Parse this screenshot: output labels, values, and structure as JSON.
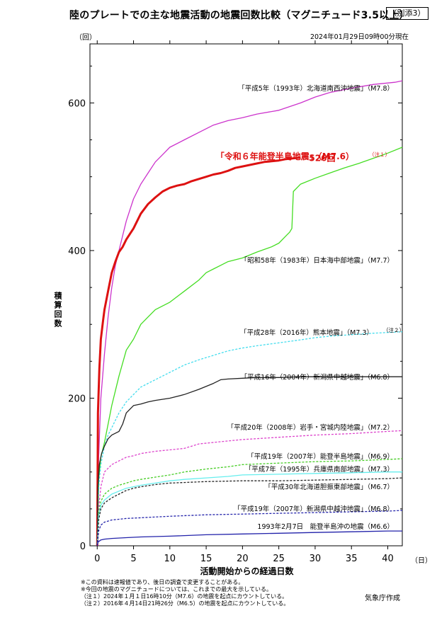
{
  "annex_label": "（別添3）",
  "title": "陸のプレートでの主な地震活動の地震回数比較（マグニチュード3.5以上）",
  "timestamp": "2024年01月29日09時00分現在",
  "y_unit": "（回）",
  "x_unit": "（日）",
  "credit": "気象庁作成",
  "footnotes": [
    "※この資料は速報値であり、後日の調査で変更することがある。",
    "※今回の地震のマグニチュードについては、これまでの最大を示している。",
    "（注１）2024年１月１日16時10分（M7.6）の地震を起点にカウントしている。",
    "（注２）2016年４月14日21時26分（M6.5）の地震を起点にカウントしている。"
  ],
  "chart_data": {
    "type": "line",
    "xlabel": "活動開始からの経過日数",
    "ylabel": "積算回数",
    "xlim": [
      -1,
      42
    ],
    "ylim": [
      0,
      680
    ],
    "xticks": [
      0,
      5,
      10,
      15,
      20,
      25,
      30,
      35,
      40
    ],
    "yticks": [
      0,
      200,
      400,
      600
    ],
    "end_annotation": "526回",
    "series": [
      {
        "name": "「平成5年（1993年）北海道南西沖地震」（M7.8）",
        "color": "#cc33cc",
        "style": "solid",
        "emphasis": false,
        "x": [
          0,
          0.2,
          0.5,
          1,
          1.5,
          2,
          2.5,
          3,
          4,
          5,
          6,
          7,
          8,
          9,
          10,
          12,
          14,
          16,
          18,
          20,
          22,
          25,
          28,
          30,
          32,
          35,
          38,
          41,
          42
        ],
        "y": [
          0,
          120,
          200,
          260,
          310,
          350,
          380,
          400,
          440,
          470,
          490,
          505,
          520,
          530,
          540,
          550,
          560,
          570,
          576,
          580,
          585,
          590,
          600,
          608,
          614,
          620,
          625,
          628,
          630
        ]
      },
      {
        "name": "「令和６年能登半島地震」（M7.6）",
        "note": "（注１）",
        "color": "#dd1111",
        "style": "solid",
        "emphasis": true,
        "x": [
          0,
          0.1,
          0.3,
          0.5,
          0.8,
          1,
          1.5,
          2,
          2.5,
          3,
          3.5,
          4,
          5,
          6,
          7,
          8,
          9,
          10,
          11,
          12,
          13,
          14,
          15,
          16,
          17,
          18,
          19,
          20,
          21,
          22,
          23,
          24,
          25,
          26,
          27,
          28
        ],
        "y": [
          0,
          180,
          240,
          280,
          305,
          320,
          345,
          370,
          385,
          398,
          405,
          415,
          430,
          450,
          463,
          472,
          480,
          485,
          488,
          490,
          494,
          497,
          500,
          503,
          505,
          508,
          512,
          514,
          516,
          518,
          520,
          521,
          522,
          524,
          525,
          526
        ]
      },
      {
        "name": "「昭和58年（1983年）日本海中部地震」（M7.7）",
        "color": "#44dd22",
        "style": "solid",
        "emphasis": false,
        "x": [
          0,
          0.2,
          0.5,
          1,
          2,
          3,
          4,
          5,
          6,
          7,
          8,
          10,
          12,
          14,
          15,
          16,
          17,
          18,
          20,
          22,
          24,
          25,
          26,
          26.5,
          26.8,
          27,
          28,
          30,
          32,
          34,
          36,
          38,
          40,
          42
        ],
        "y": [
          0,
          90,
          120,
          140,
          190,
          230,
          265,
          280,
          300,
          310,
          320,
          330,
          345,
          360,
          370,
          375,
          380,
          385,
          390,
          398,
          405,
          410,
          420,
          425,
          430,
          480,
          490,
          498,
          505,
          512,
          518,
          525,
          532,
          540
        ]
      },
      {
        "name": "「平成28年（2016年）熊本地震」（M7.3）",
        "note": "（注２）",
        "color": "#44ddee",
        "style": "dashed",
        "emphasis": false,
        "x": [
          0,
          0.1,
          0.3,
          0.5,
          1,
          1.5,
          2,
          3,
          4,
          5,
          6,
          8,
          10,
          12,
          14,
          16,
          18,
          20,
          22,
          25,
          28,
          30,
          32,
          35,
          38,
          40,
          42
        ],
        "y": [
          0,
          60,
          90,
          110,
          135,
          150,
          160,
          180,
          195,
          205,
          215,
          225,
          235,
          245,
          252,
          258,
          264,
          268,
          271,
          275,
          279,
          282,
          284,
          286,
          288,
          289,
          290
        ]
      },
      {
        "name": "「平成16年（2004年）新潟県中越地震」（M6.8）",
        "color": "#222222",
        "style": "solid",
        "emphasis": false,
        "x": [
          0,
          0.1,
          0.3,
          0.6,
          1,
          1.5,
          2,
          3,
          3.5,
          4,
          5,
          6,
          7,
          8,
          10,
          12,
          14,
          16,
          17,
          18,
          20,
          22,
          25,
          28,
          30,
          35,
          40,
          42
        ],
        "y": [
          0,
          80,
          110,
          125,
          135,
          145,
          150,
          155,
          165,
          180,
          190,
          192,
          195,
          197,
          200,
          205,
          212,
          220,
          225,
          226,
          227,
          228,
          228,
          229,
          229,
          229,
          229,
          229
        ]
      },
      {
        "name": "「平成20年（2008年）岩手・宮城内陸地震」（M7.2）",
        "color": "#dd44cc",
        "style": "dashed",
        "emphasis": false,
        "x": [
          0,
          0.2,
          0.5,
          1,
          2,
          3,
          4,
          5,
          6,
          8,
          10,
          12,
          14,
          16,
          18,
          20,
          25,
          30,
          35,
          40,
          42
        ],
        "y": [
          0,
          50,
          80,
          100,
          110,
          115,
          120,
          122,
          125,
          128,
          130,
          132,
          138,
          140,
          142,
          144,
          147,
          150,
          152,
          155,
          156
        ]
      },
      {
        "name": "「平成19年（2007年）能登半島地震」（M6.9）",
        "color": "#44cc22",
        "style": "dashed",
        "emphasis": false,
        "x": [
          0,
          0.2,
          0.5,
          1,
          2,
          3,
          4,
          5,
          6,
          8,
          10,
          12,
          15,
          18,
          20,
          25,
          30,
          35,
          40,
          42
        ],
        "y": [
          0,
          45,
          60,
          70,
          78,
          82,
          85,
          88,
          90,
          93,
          96,
          100,
          104,
          107,
          110,
          112,
          114,
          115,
          117,
          118
        ]
      },
      {
        "name": "「平成7年（1995年）兵庫県南部地震」（M7.3）",
        "color": "#66eeee",
        "style": "solid",
        "emphasis": false,
        "x": [
          0,
          0.2,
          0.5,
          1,
          2,
          3,
          4,
          5,
          6,
          8,
          10,
          12,
          15,
          18,
          20,
          25,
          30,
          35,
          40,
          42
        ],
        "y": [
          0,
          40,
          55,
          62,
          70,
          74,
          78,
          80,
          82,
          85,
          88,
          90,
          92,
          94,
          96,
          97,
          98,
          99,
          100,
          100
        ]
      },
      {
        "name": "「平成30年北海道胆振東部地震」（M6.7）",
        "color": "#222222",
        "style": "dashed",
        "emphasis": false,
        "x": [
          0,
          0.2,
          0.5,
          1,
          2,
          3,
          4,
          5,
          6,
          8,
          10,
          15,
          20,
          25,
          30,
          35,
          40,
          42
        ],
        "y": [
          0,
          35,
          50,
          58,
          65,
          70,
          75,
          78,
          80,
          83,
          85,
          87,
          88,
          88,
          89,
          90,
          91,
          92
        ]
      },
      {
        "name": "「平成19年（2007年）新潟県中越沖地震」（M6.8）",
        "color": "#2222aa",
        "style": "dashed",
        "emphasis": false,
        "x": [
          0,
          0.2,
          0.5,
          1,
          2,
          3,
          4,
          6,
          8,
          10,
          15,
          20,
          25,
          30,
          35,
          40,
          42
        ],
        "y": [
          0,
          20,
          28,
          32,
          35,
          36,
          37,
          38,
          39,
          40,
          42,
          43,
          44,
          45,
          46,
          47,
          48
        ]
      },
      {
        "name": "1993年2月7日　能登半島沖の地震（M6.6）",
        "color": "#2222aa",
        "style": "solid",
        "emphasis": false,
        "x": [
          0,
          0.1,
          0.5,
          1,
          2,
          4,
          6,
          10,
          15,
          20,
          25,
          30,
          35,
          40,
          42
        ],
        "y": [
          0,
          5,
          8,
          9,
          10,
          11,
          12,
          13,
          15,
          16,
          17,
          18,
          19,
          20,
          20
        ]
      }
    ]
  }
}
